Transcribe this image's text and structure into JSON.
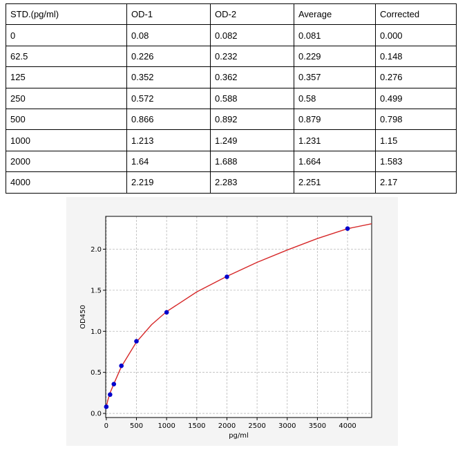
{
  "table": {
    "headers": [
      "STD.(pg/ml)",
      "OD-1",
      "OD-2",
      "Average",
      "Corrected"
    ],
    "rows": [
      [
        "0",
        "0.08",
        "0.082",
        "0.081",
        "0.000"
      ],
      [
        "62.5",
        "0.226",
        "0.232",
        "0.229",
        "0.148"
      ],
      [
        "125",
        "0.352",
        "0.362",
        "0.357",
        "0.276"
      ],
      [
        "250",
        "0.572",
        "0.588",
        "0.58",
        "0.499"
      ],
      [
        "500",
        "0.866",
        "0.892",
        "0.879",
        "0.798"
      ],
      [
        "1000",
        "1.213",
        "1.249",
        "1.231",
        "1.15"
      ],
      [
        "2000",
        "1.64",
        "1.688",
        "1.664",
        "1.583"
      ],
      [
        "4000",
        "2.219",
        "2.283",
        "2.251",
        "2.17"
      ]
    ]
  },
  "chart_data": {
    "type": "scatter",
    "title": "",
    "xlabel": "pg/ml",
    "ylabel": "OD450",
    "xlim": [
      -10,
      4400
    ],
    "ylim": [
      -0.05,
      2.4
    ],
    "xticks": [
      0,
      500,
      1000,
      1500,
      2000,
      2500,
      3000,
      3500,
      4000
    ],
    "yticks": [
      0.0,
      0.5,
      1.0,
      1.5,
      2.0
    ],
    "xtick_labels": [
      "0",
      "500",
      "1000",
      "1500",
      "2000",
      "2500",
      "3000",
      "3500",
      "4000"
    ],
    "ytick_labels": [
      "0.0",
      "0.5",
      "1.0",
      "1.5",
      "2.0"
    ],
    "grid": true,
    "series": [
      {
        "type": "scatter",
        "color": "#0000cc",
        "x": [
          0,
          62.5,
          125,
          250,
          500,
          1000,
          2000,
          4000
        ],
        "y": [
          0.081,
          0.229,
          0.357,
          0.58,
          0.879,
          1.231,
          1.664,
          2.251
        ]
      },
      {
        "type": "line",
        "color": "#d62728",
        "x": [
          0,
          25,
          62.5,
          125,
          250,
          500,
          750,
          1000,
          1500,
          2000,
          2500,
          3000,
          3500,
          4000,
          4400
        ],
        "y": [
          0.08,
          0.16,
          0.25,
          0.36,
          0.57,
          0.87,
          1.08,
          1.24,
          1.48,
          1.67,
          1.84,
          1.99,
          2.13,
          2.25,
          2.31
        ]
      }
    ]
  }
}
